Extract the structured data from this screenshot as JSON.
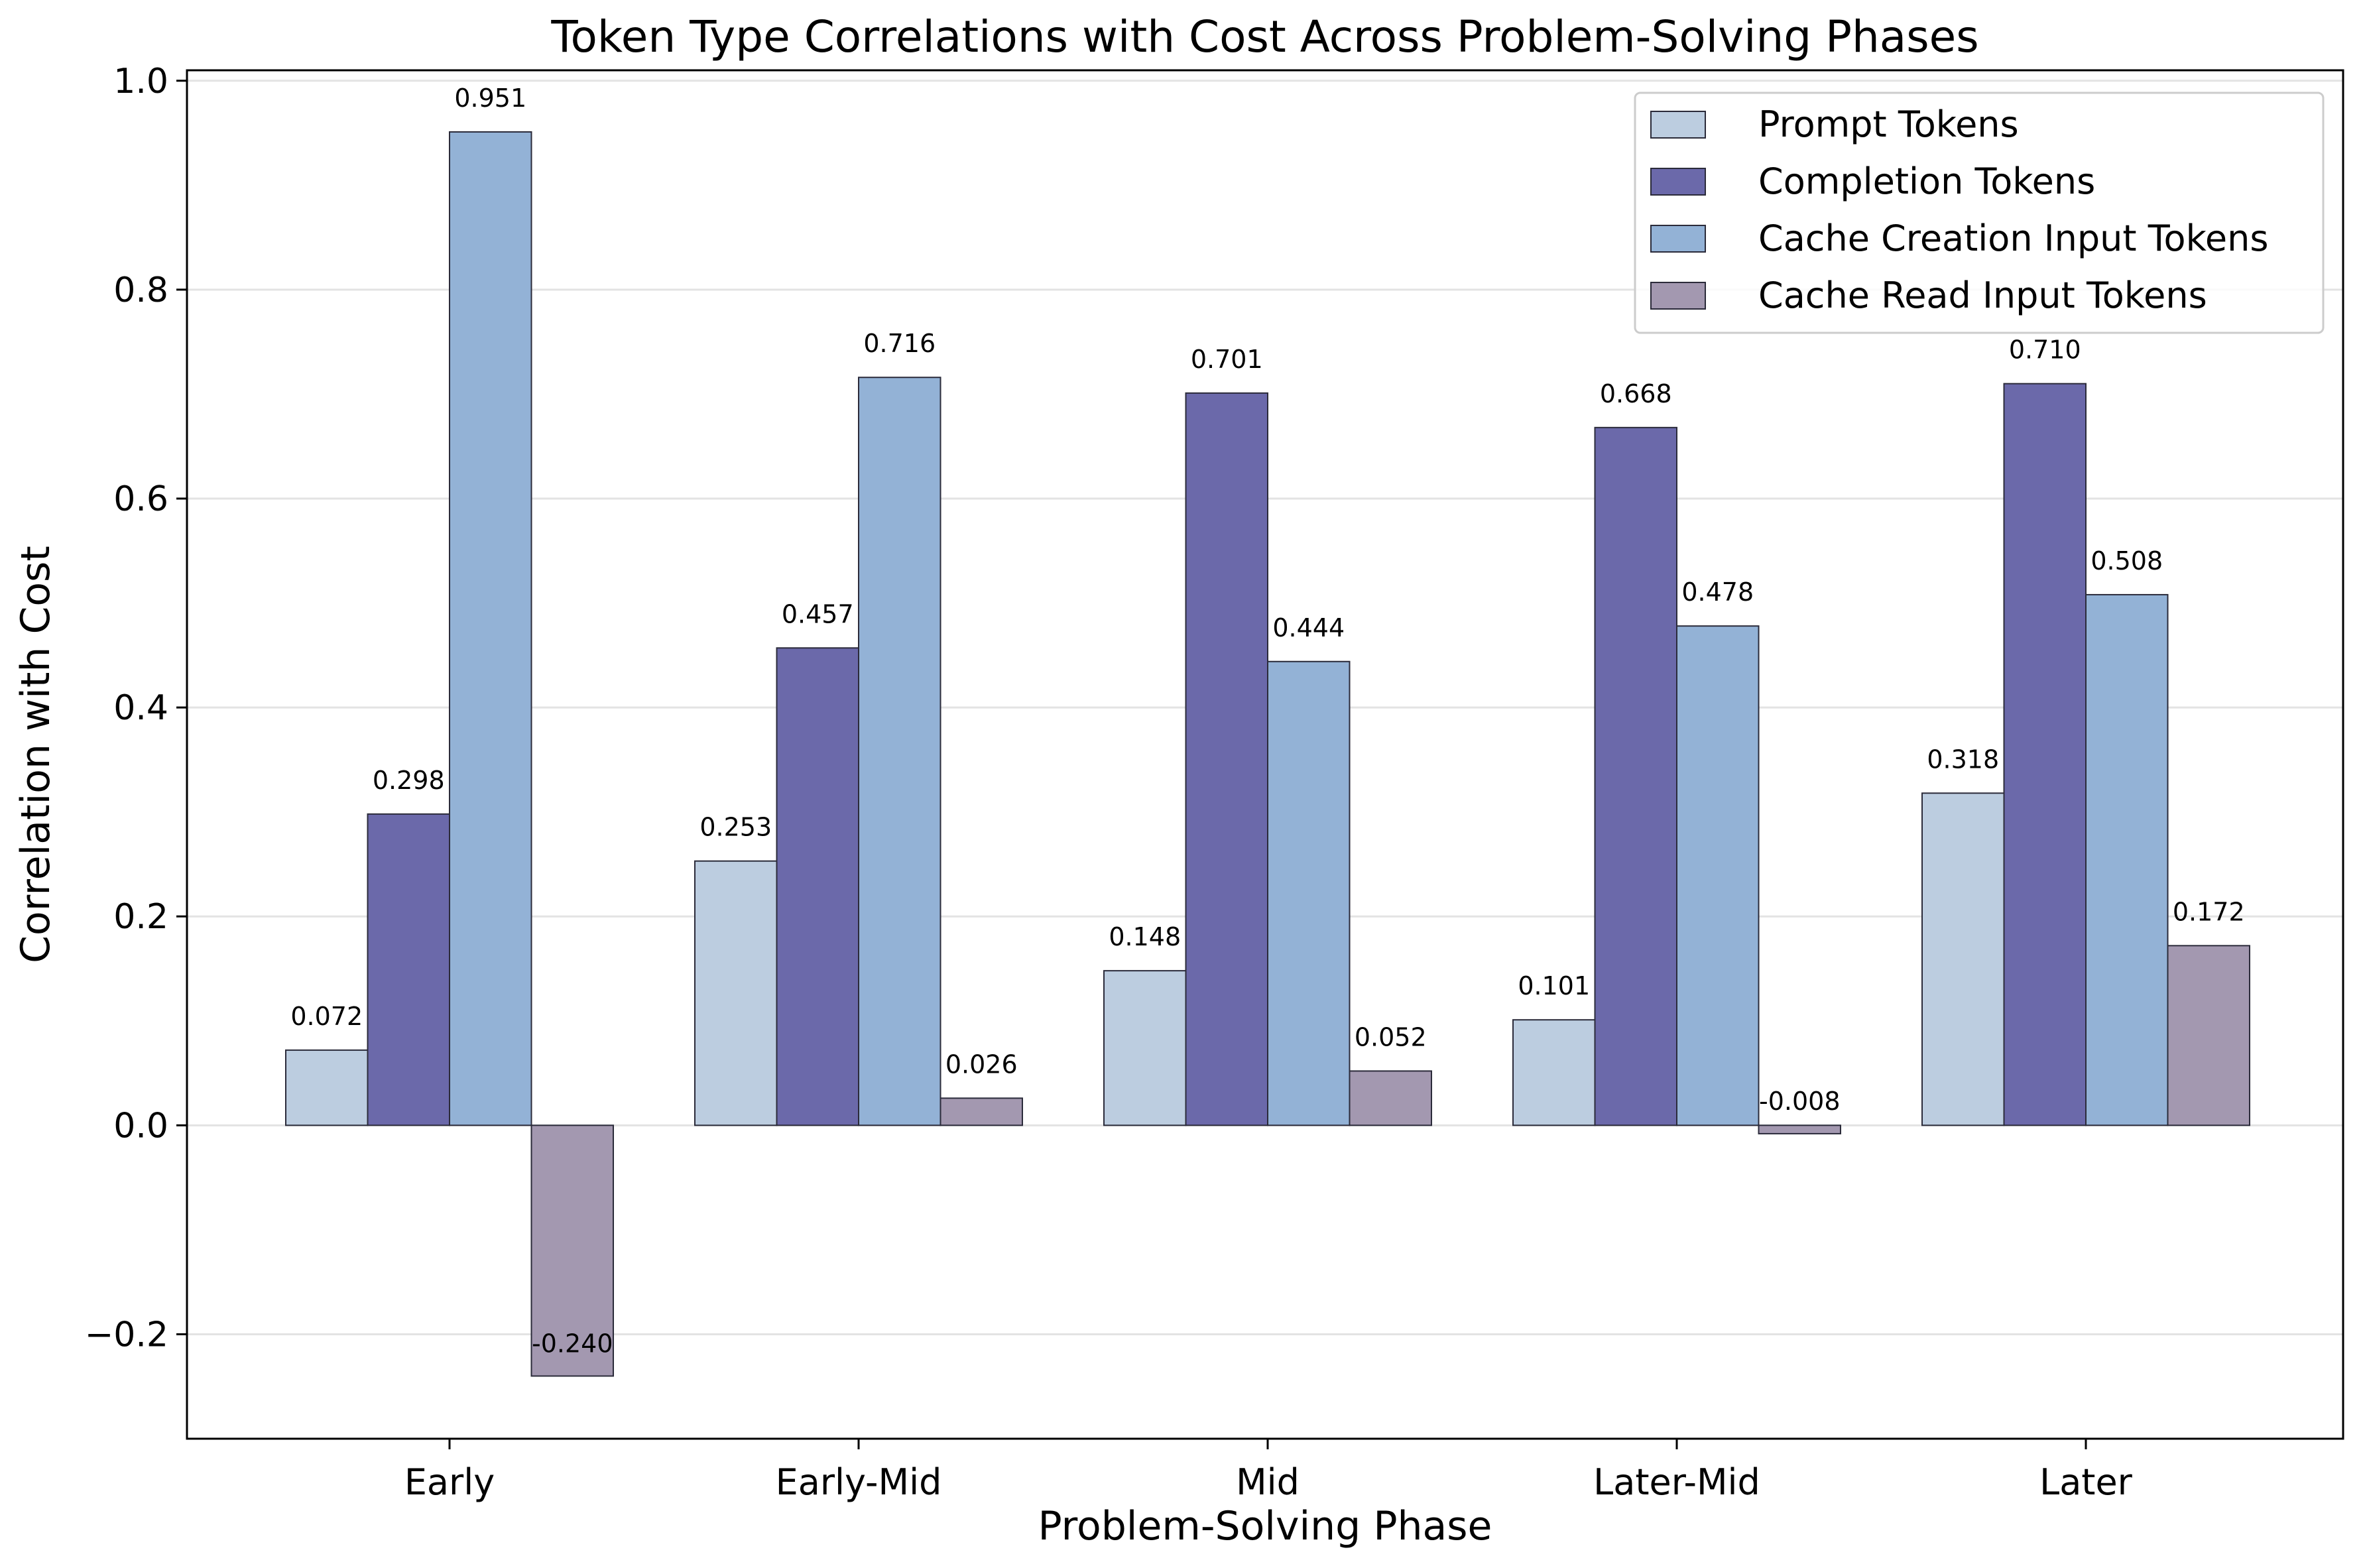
{
  "chart_data": {
    "type": "bar",
    "title": "Token Type Correlations with Cost Across Problem-Solving Phases",
    "xlabel": "Problem-Solving Phase",
    "ylabel": "Correlation with Cost",
    "categories": [
      "Early",
      "Early-Mid",
      "Mid",
      "Later-Mid",
      "Later"
    ],
    "ylim": [
      -0.3,
      1.01
    ],
    "yticks": [
      -0.2,
      0.0,
      0.2,
      0.4,
      0.6,
      0.8,
      1.0
    ],
    "ytick_labels": [
      "−0.2",
      "0.0",
      "0.2",
      "0.4",
      "0.6",
      "0.8",
      "1.0"
    ],
    "grid": "horizontal",
    "legend_position": "top-right",
    "series": [
      {
        "name": "Prompt Tokens",
        "color": "#bccde0",
        "values": [
          0.072,
          0.253,
          0.148,
          0.101,
          0.318
        ],
        "labels": [
          "0.072",
          "0.253",
          "0.148",
          "0.101",
          "0.318"
        ]
      },
      {
        "name": "Completion Tokens",
        "color": "#6b69aa",
        "values": [
          0.298,
          0.457,
          0.701,
          0.668,
          0.71
        ],
        "labels": [
          "0.298",
          "0.457",
          "0.701",
          "0.668",
          "0.710"
        ]
      },
      {
        "name": "Cache Creation Input Tokens",
        "color": "#93b2d6",
        "values": [
          0.951,
          0.716,
          0.444,
          0.478,
          0.508
        ],
        "labels": [
          "0.951",
          "0.716",
          "0.444",
          "0.478",
          "0.508"
        ]
      },
      {
        "name": "Cache Read Input Tokens",
        "color": "#a398b0",
        "values": [
          -0.24,
          0.026,
          0.052,
          -0.008,
          0.172
        ],
        "labels": [
          "-0.240",
          "0.026",
          "0.052",
          "-0.008",
          "0.172"
        ]
      }
    ]
  }
}
